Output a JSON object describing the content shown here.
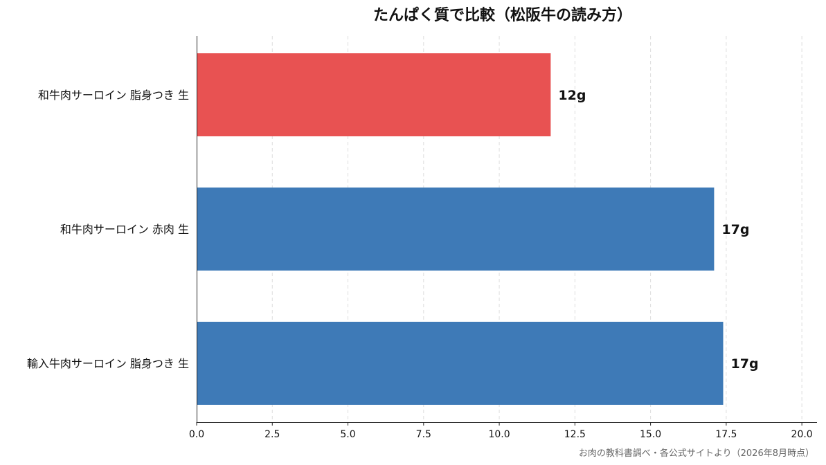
{
  "chart_data": {
    "type": "bar",
    "orientation": "horizontal",
    "title": "たんぱく質で比較（松阪牛の読み方）",
    "categories": [
      "和牛肉サーロイン 脂身つき 生",
      "和牛肉サーロイン 赤肉 生",
      "輸入牛肉サーロイン 脂身つき 生"
    ],
    "values": [
      11.7,
      17.1,
      17.4
    ],
    "value_labels": [
      "12g",
      "17g",
      "17g"
    ],
    "bar_colors": [
      "#e85252",
      "#3e7ab7",
      "#3e7ab7"
    ],
    "xlim": [
      0,
      20.5
    ],
    "xticks": [
      0,
      2.5,
      5,
      7.5,
      10,
      12.5,
      15,
      17.5,
      20
    ],
    "xtick_labels": [
      "0.0",
      "2.5",
      "5.0",
      "7.5",
      "10.0",
      "12.5",
      "15.0",
      "17.5",
      "20.0"
    ],
    "xlabel": "",
    "ylabel": "",
    "grid": "vertical-dashed",
    "legend": "none"
  },
  "source_note": "お肉の教科書調べ・各公式サイトより（2026年8月時点）"
}
